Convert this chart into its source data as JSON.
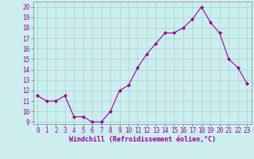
{
  "x": [
    0,
    1,
    2,
    3,
    4,
    5,
    6,
    7,
    8,
    9,
    10,
    11,
    12,
    13,
    14,
    15,
    16,
    17,
    18,
    19,
    20,
    21,
    22,
    23
  ],
  "y": [
    11.5,
    11.0,
    11.0,
    11.5,
    9.5,
    9.5,
    9.0,
    9.0,
    10.0,
    12.0,
    12.5,
    14.2,
    15.5,
    16.5,
    17.5,
    17.5,
    18.0,
    18.8,
    20.0,
    18.5,
    17.5,
    15.0,
    14.2,
    12.7
  ],
  "line_color": "#990099",
  "marker": "D",
  "marker_size": 2.0,
  "bg_color": "#bbeebb",
  "plot_bg_color": "#cceeee",
  "grid_color": "#99cccc",
  "xlabel": "Windchill (Refroidissement éolien,°C)",
  "ylabel_ticks": [
    9,
    10,
    11,
    12,
    13,
    14,
    15,
    16,
    17,
    18,
    19,
    20
  ],
  "xlim": [
    -0.5,
    23.5
  ],
  "ylim": [
    8.8,
    20.5
  ],
  "xlabel_fontsize": 6.0,
  "tick_fontsize": 5.5,
  "spine_color": "#888888"
}
